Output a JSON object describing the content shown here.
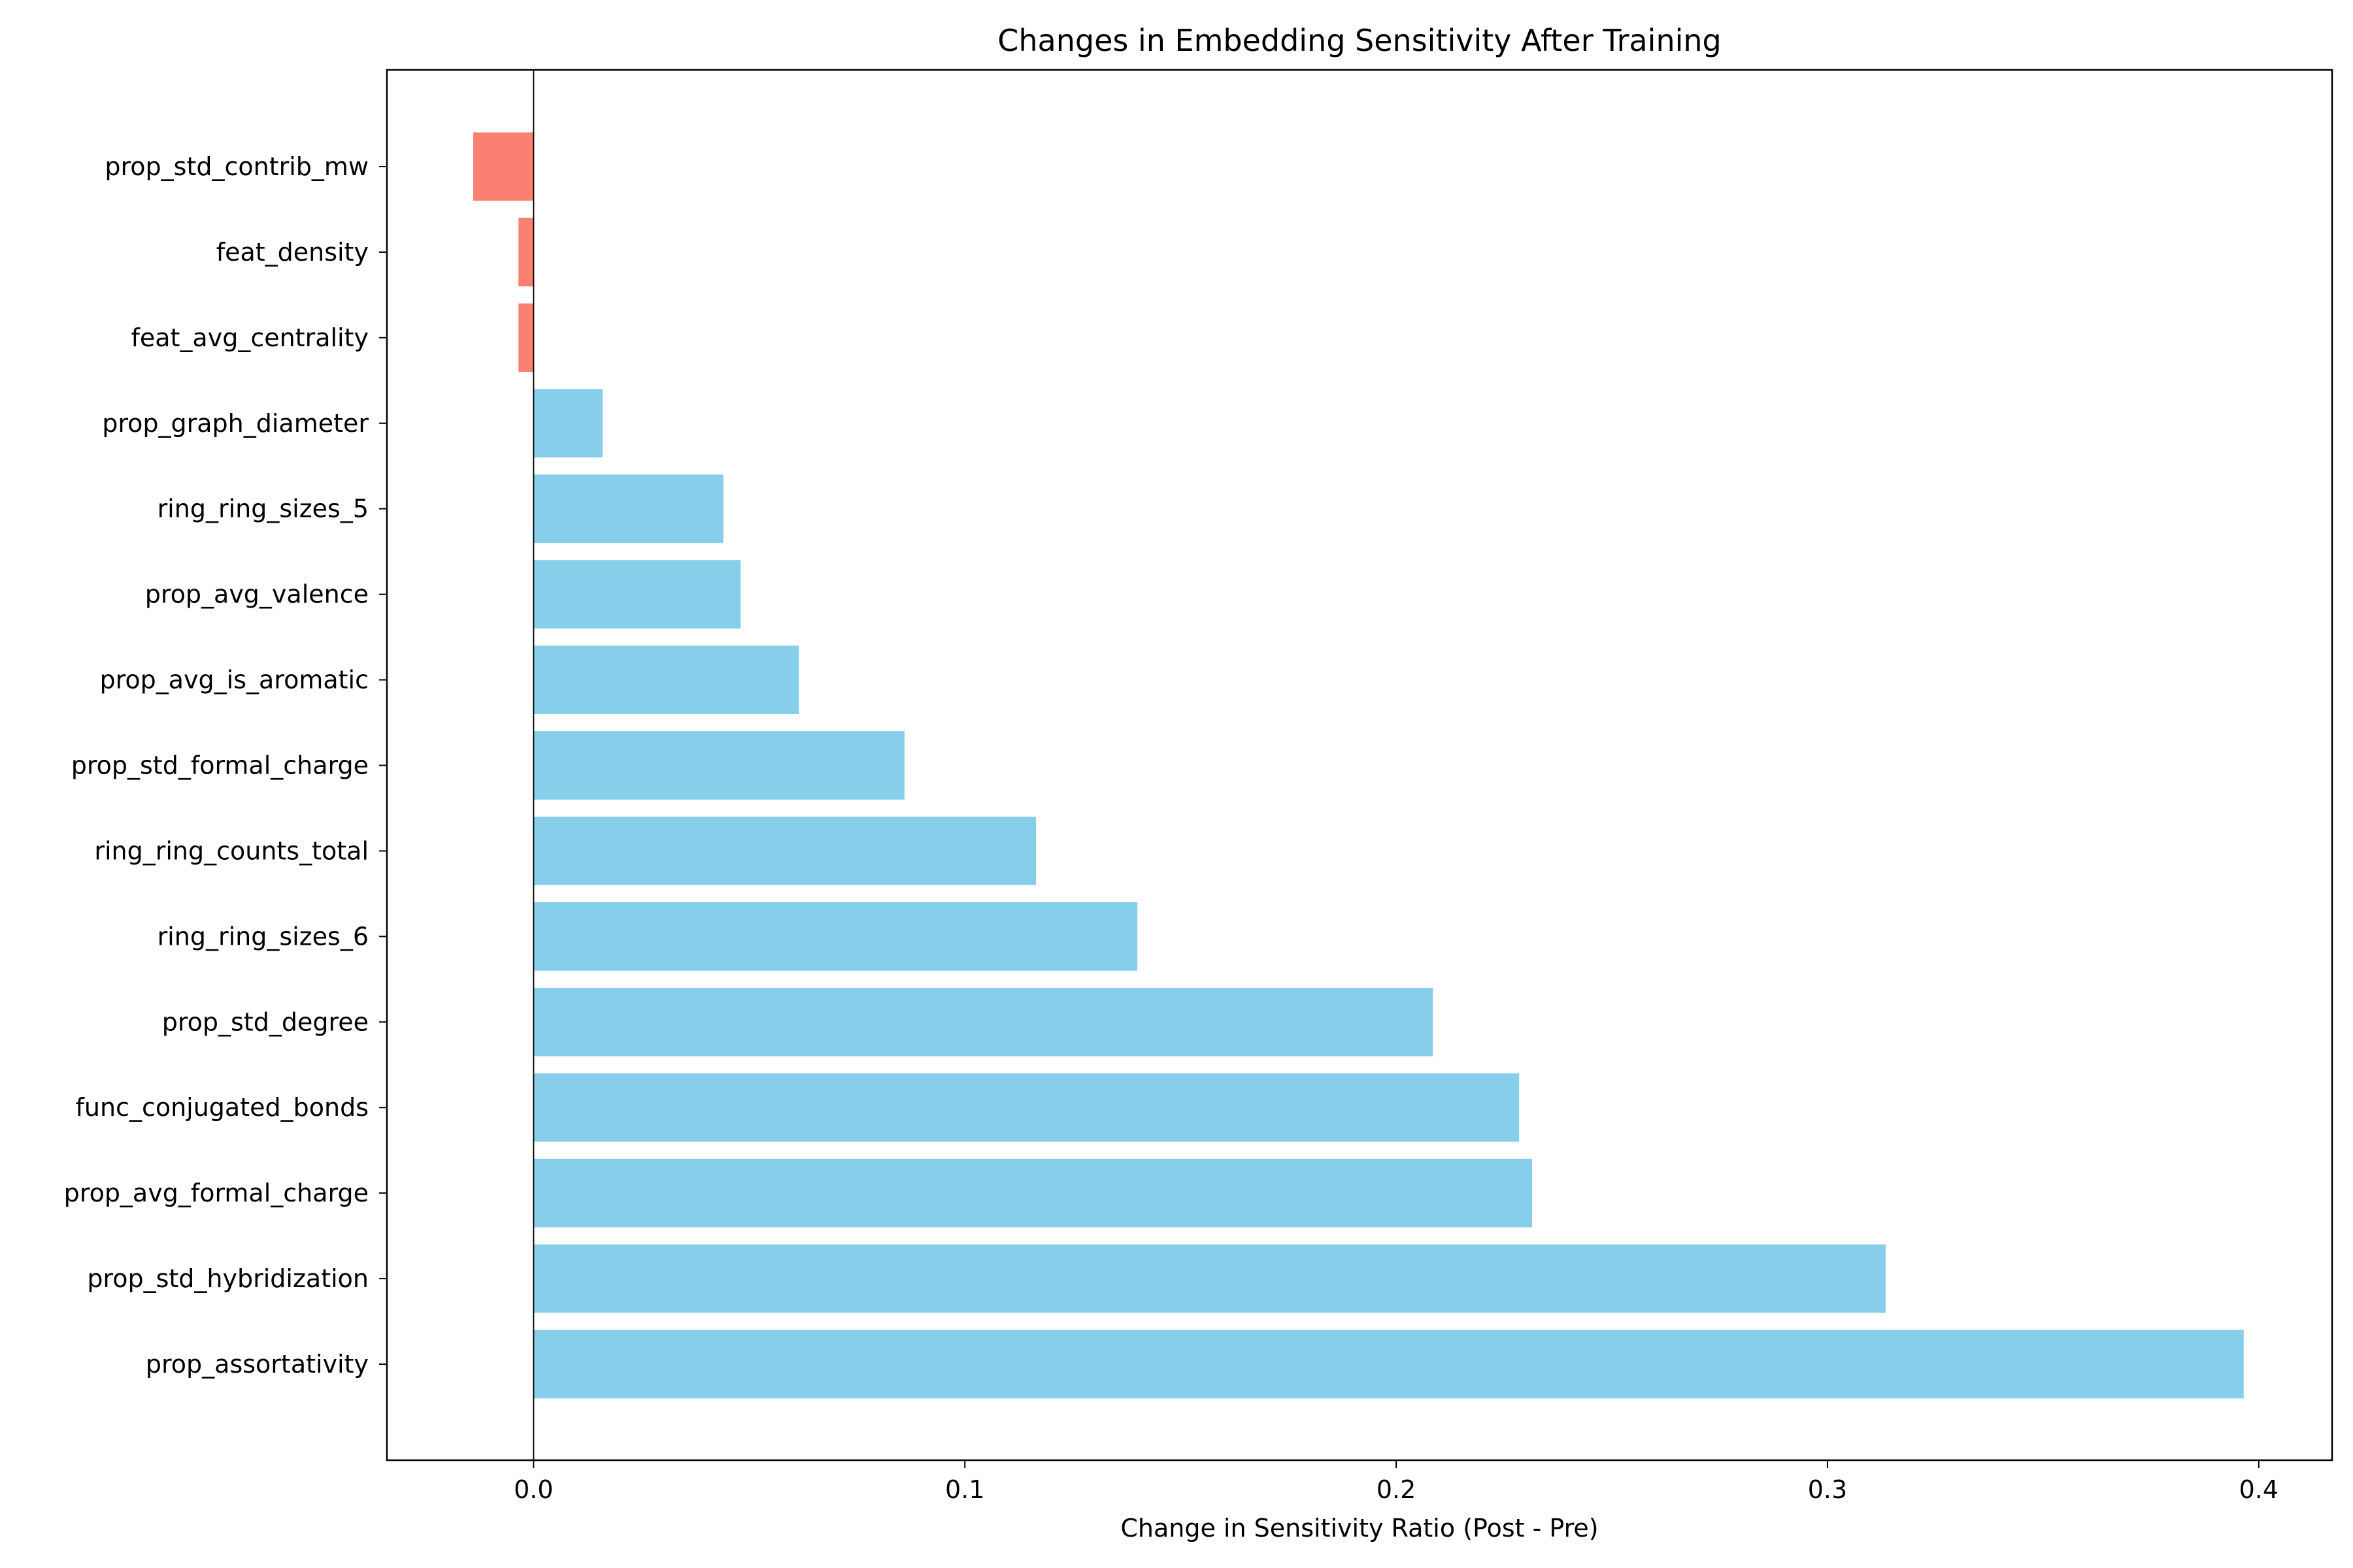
{
  "chart_data": {
    "type": "bar",
    "orientation": "horizontal",
    "title": "Changes in Embedding Sensitivity After Training",
    "xlabel": "Change in Sensitivity Ratio (Post - Pre)",
    "ylabel": "",
    "xlim": [
      -0.034,
      0.417
    ],
    "xticks": [
      "0.0",
      "0.1",
      "0.2",
      "0.3",
      "0.4"
    ],
    "xtick_values": [
      0.0,
      0.1,
      0.2,
      0.3,
      0.4
    ],
    "grid": false,
    "legend": "none",
    "colors": {
      "positive": "#87ceeb",
      "negative": "#fa8072",
      "zero_line": "#000000"
    },
    "categories": [
      "prop_std_contrib_mw",
      "feat_density",
      "feat_avg_centrality",
      "prop_graph_diameter",
      "ring_ring_sizes_5",
      "prop_avg_valence",
      "prop_avg_is_aromatic",
      "prop_std_formal_charge",
      "ring_ring_counts_total",
      "ring_ring_sizes_6",
      "prop_std_degree",
      "func_conjugated_bonds",
      "prop_avg_formal_charge",
      "prop_std_hybridization",
      "prop_assortativity"
    ],
    "values": [
      -0.014,
      -0.0035,
      -0.0035,
      0.016,
      0.044,
      0.048,
      0.0615,
      0.086,
      0.1165,
      0.14,
      0.2085,
      0.2285,
      0.2315,
      0.3135,
      0.3965
    ]
  }
}
